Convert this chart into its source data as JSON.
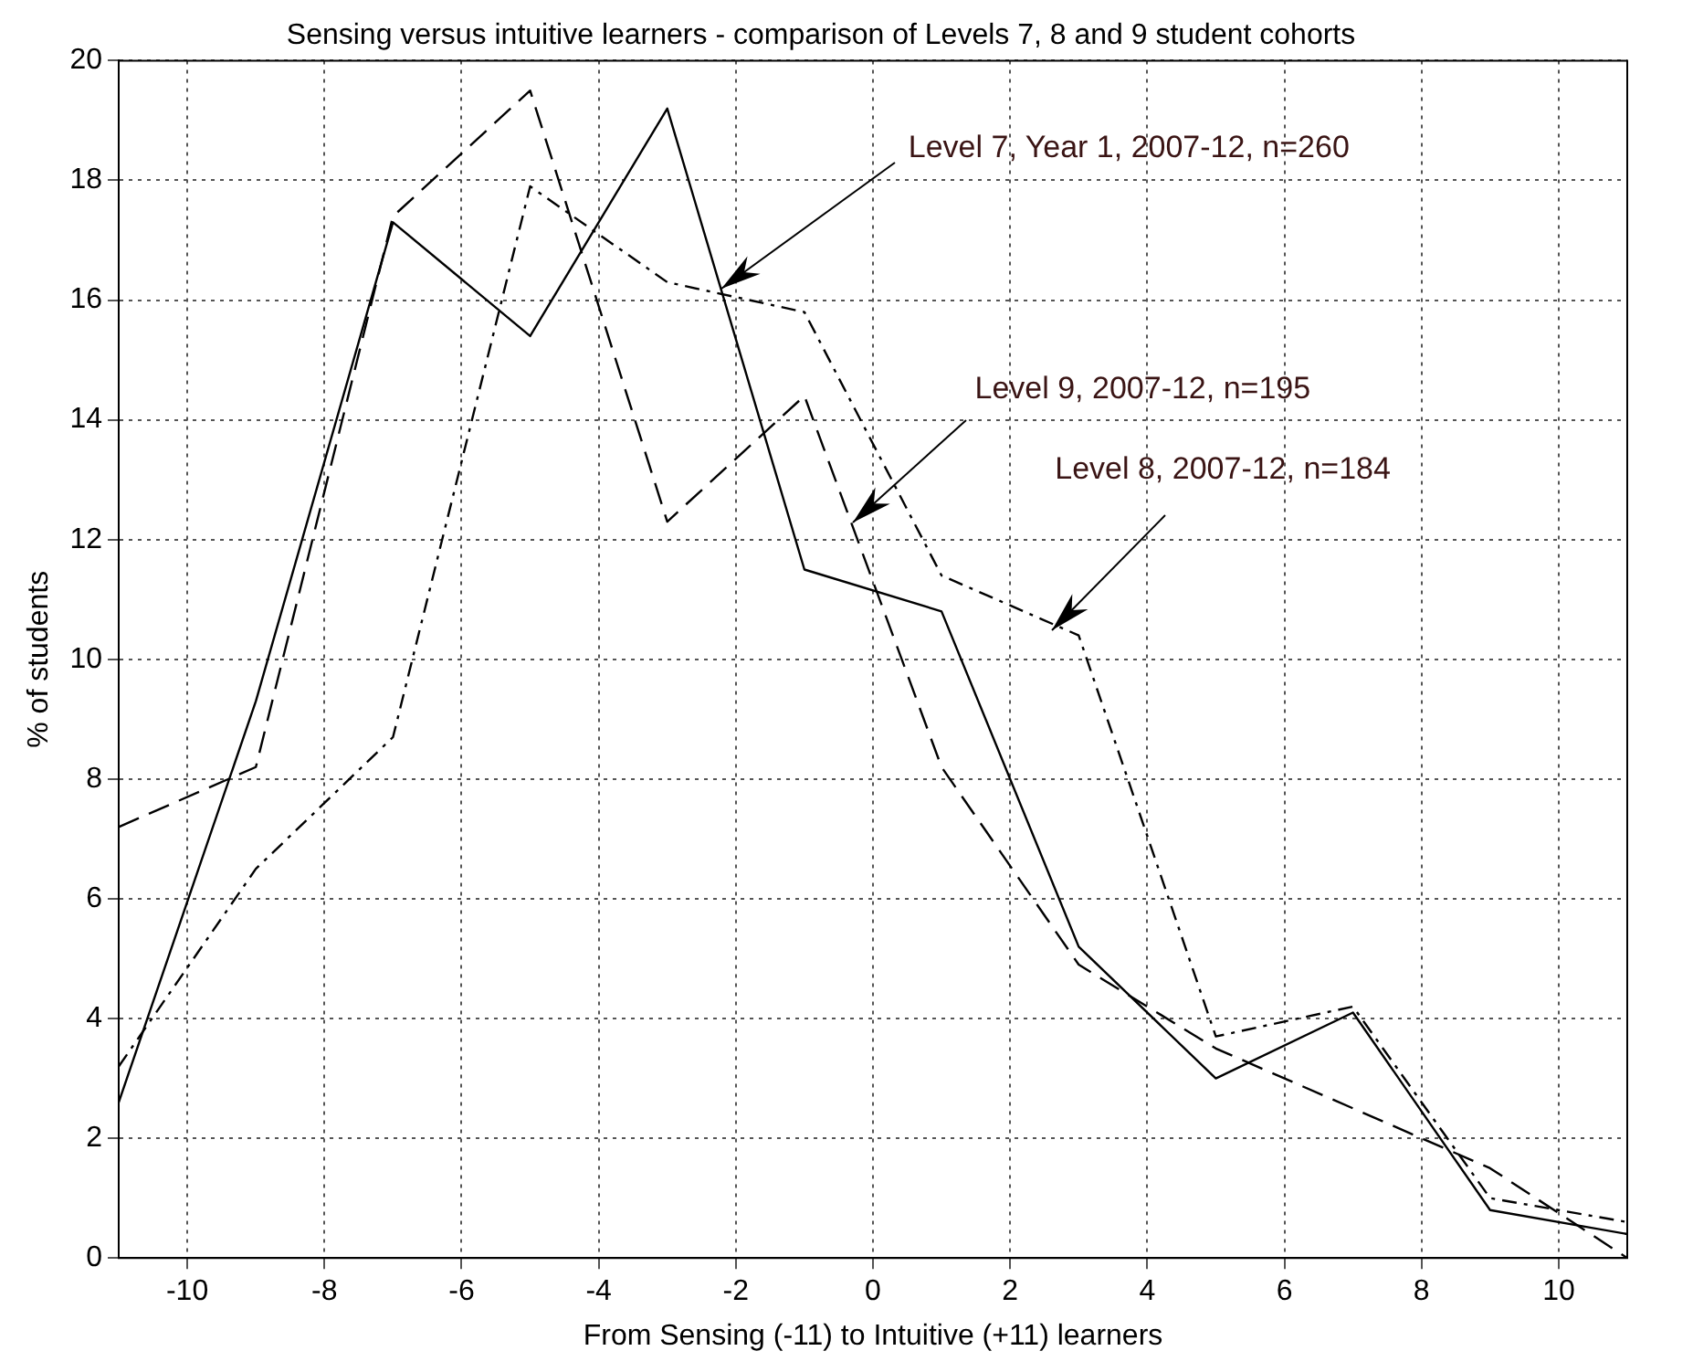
{
  "chart_data": {
    "type": "line",
    "title": "Sensing versus intuitive learners - comparison of Levels 7, 8 and 9 student cohorts",
    "xlabel": "From Sensing (-11) to Intuitive (+11) learners",
    "ylabel": "% of students",
    "x": [
      -11,
      -9,
      -7,
      -5,
      -3,
      -1,
      1,
      3,
      5,
      7,
      9,
      11
    ],
    "series": [
      {
        "color": "#000000",
        "line_style": "solid",
        "values": [
          2.6,
          9.3,
          17.3,
          15.4,
          19.2,
          11.5,
          10.8,
          5.2,
          3.0,
          4.1,
          0.8,
          0.4
        ]
      },
      {
        "color": "#000000",
        "line_style": "dashed",
        "values": [
          7.2,
          8.2,
          17.4,
          19.5,
          12.3,
          14.4,
          8.2,
          4.9,
          3.5,
          2.5,
          1.5,
          0
        ]
      },
      {
        "color": "#000000",
        "line_style": "dashdot",
        "values": [
          3.2,
          6.5,
          8.7,
          17.9,
          16.3,
          15.8,
          11.4,
          10.4,
          3.7,
          4.2,
          1.0,
          0.6
        ]
      }
    ],
    "xlim": [
      -11,
      11
    ],
    "xticks": [
      -10,
      -8,
      -6,
      -4,
      -2,
      0,
      2,
      4,
      6,
      8,
      10
    ],
    "ylim": [
      0,
      20
    ],
    "yticks": [
      0,
      2,
      4,
      6,
      8,
      10,
      12,
      14,
      16,
      18,
      20
    ],
    "grid": true,
    "legend": false,
    "annotations": [
      {
        "text": "Level 7, Year 1, 2007-12, n=260",
        "x": -2.2,
        "y": 16.2
      },
      {
        "text": "Level 9, 2007-12, n=195",
        "x": -0.3,
        "y": 12.3
      },
      {
        "text": "Level 8, 2007-12, n=184",
        "x": 2.6,
        "y": 10.5
      }
    ]
  }
}
